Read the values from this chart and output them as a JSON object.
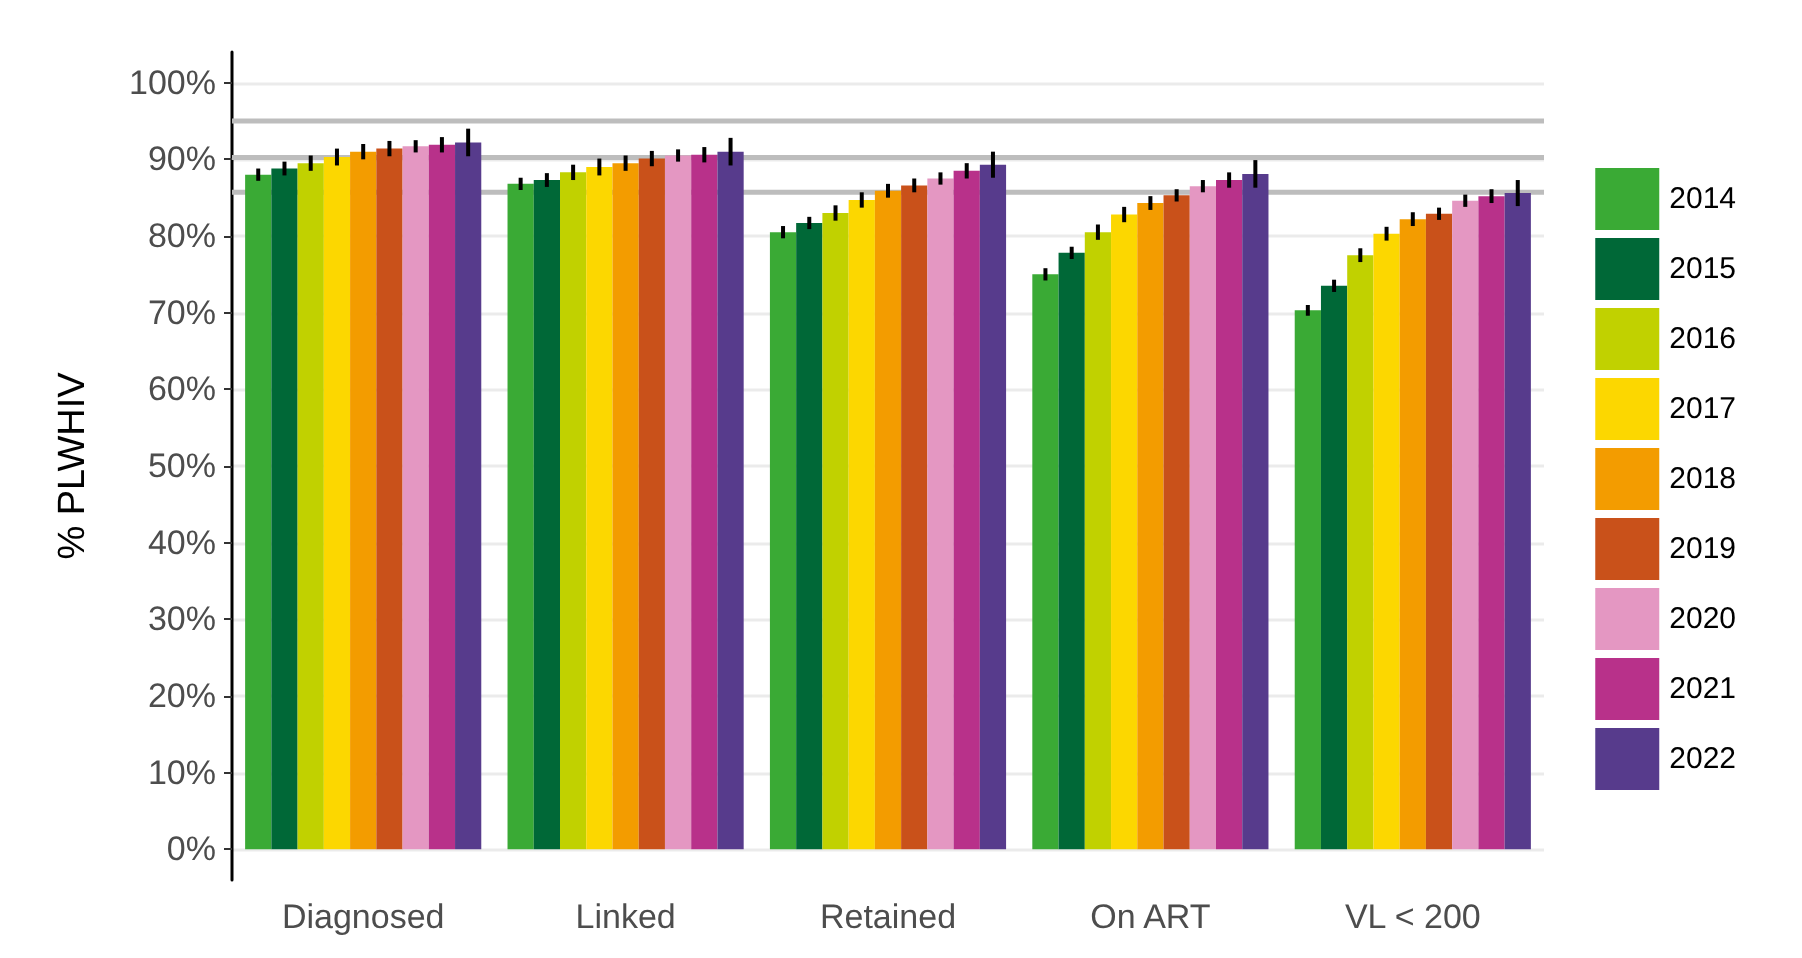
{
  "chart_data": {
    "type": "bar",
    "ylabel": "% PLWHIV",
    "categories": [
      "Diagnosed",
      "Linked",
      "Retained",
      "On ART",
      "VL < 200"
    ],
    "ylim": [
      -4,
      104
    ],
    "yticks": [
      {
        "value": 0,
        "label": "0%"
      },
      {
        "value": 10,
        "label": "10%"
      },
      {
        "value": 20,
        "label": "20%"
      },
      {
        "value": 30,
        "label": "30%"
      },
      {
        "value": 40,
        "label": "40%"
      },
      {
        "value": 50,
        "label": "50%"
      },
      {
        "value": 60,
        "label": "60%"
      },
      {
        "value": 70,
        "label": "70%"
      },
      {
        "value": 80,
        "label": "80%"
      },
      {
        "value": 90,
        "label": "90%"
      },
      {
        "value": 100,
        "label": "100%"
      }
    ],
    "grid": "y",
    "legend": "right",
    "series": [
      {
        "name": "2014",
        "color": "#3aaa35",
        "values": [
          88,
          86.8,
          80.5,
          75,
          70.3
        ],
        "errors": [
          0.8,
          0.8,
          0.8,
          0.8,
          0.7
        ]
      },
      {
        "name": "2015",
        "color": "#006837",
        "values": [
          88.8,
          87.3,
          81.7,
          77.8,
          73.5
        ],
        "errors": [
          0.9,
          0.9,
          0.8,
          0.8,
          0.8
        ]
      },
      {
        "name": "2016",
        "color": "#c1d100",
        "values": [
          89.5,
          88.3,
          83,
          80.5,
          77.5
        ],
        "errors": [
          1,
          1,
          1,
          1,
          0.9
        ]
      },
      {
        "name": "2017",
        "color": "#fcd700",
        "values": [
          90.3,
          89,
          84.7,
          82.8,
          80.3
        ],
        "errors": [
          1.1,
          1.1,
          1,
          1,
          0.9
        ]
      },
      {
        "name": "2018",
        "color": "#f39c00",
        "values": [
          91,
          89.5,
          85.9,
          84.3,
          82.2
        ],
        "errors": [
          1,
          1,
          0.9,
          0.9,
          0.9
        ]
      },
      {
        "name": "2019",
        "color": "#c9511a",
        "values": [
          91.4,
          90.1,
          86.6,
          85.3,
          82.9
        ],
        "errors": [
          1,
          1,
          0.9,
          0.8,
          0.8
        ]
      },
      {
        "name": "2020",
        "color": "#e497c2",
        "values": [
          91.7,
          90.5,
          87.5,
          86.5,
          84.6
        ],
        "errors": [
          0.8,
          0.8,
          0.8,
          0.8,
          0.8
        ]
      },
      {
        "name": "2021",
        "color": "#b8318a",
        "values": [
          91.9,
          90.6,
          88.5,
          87.3,
          85.2
        ],
        "errors": [
          1,
          1,
          1,
          1,
          0.9
        ]
      },
      {
        "name": "2022",
        "color": "#573b8c",
        "values": [
          92.2,
          91,
          89.3,
          88.1,
          85.6
        ],
        "errors": [
          1.8,
          1.8,
          1.7,
          1.8,
          1.7
        ]
      }
    ],
    "ref_lines": [
      {
        "axis": "y",
        "value": 95,
        "color": "#bdbdbd"
      },
      {
        "axis": "y",
        "value": 90.25,
        "color": "#bdbdbd"
      },
      {
        "axis": "y",
        "value": 85.7,
        "color": "#bdbdbd"
      }
    ]
  }
}
